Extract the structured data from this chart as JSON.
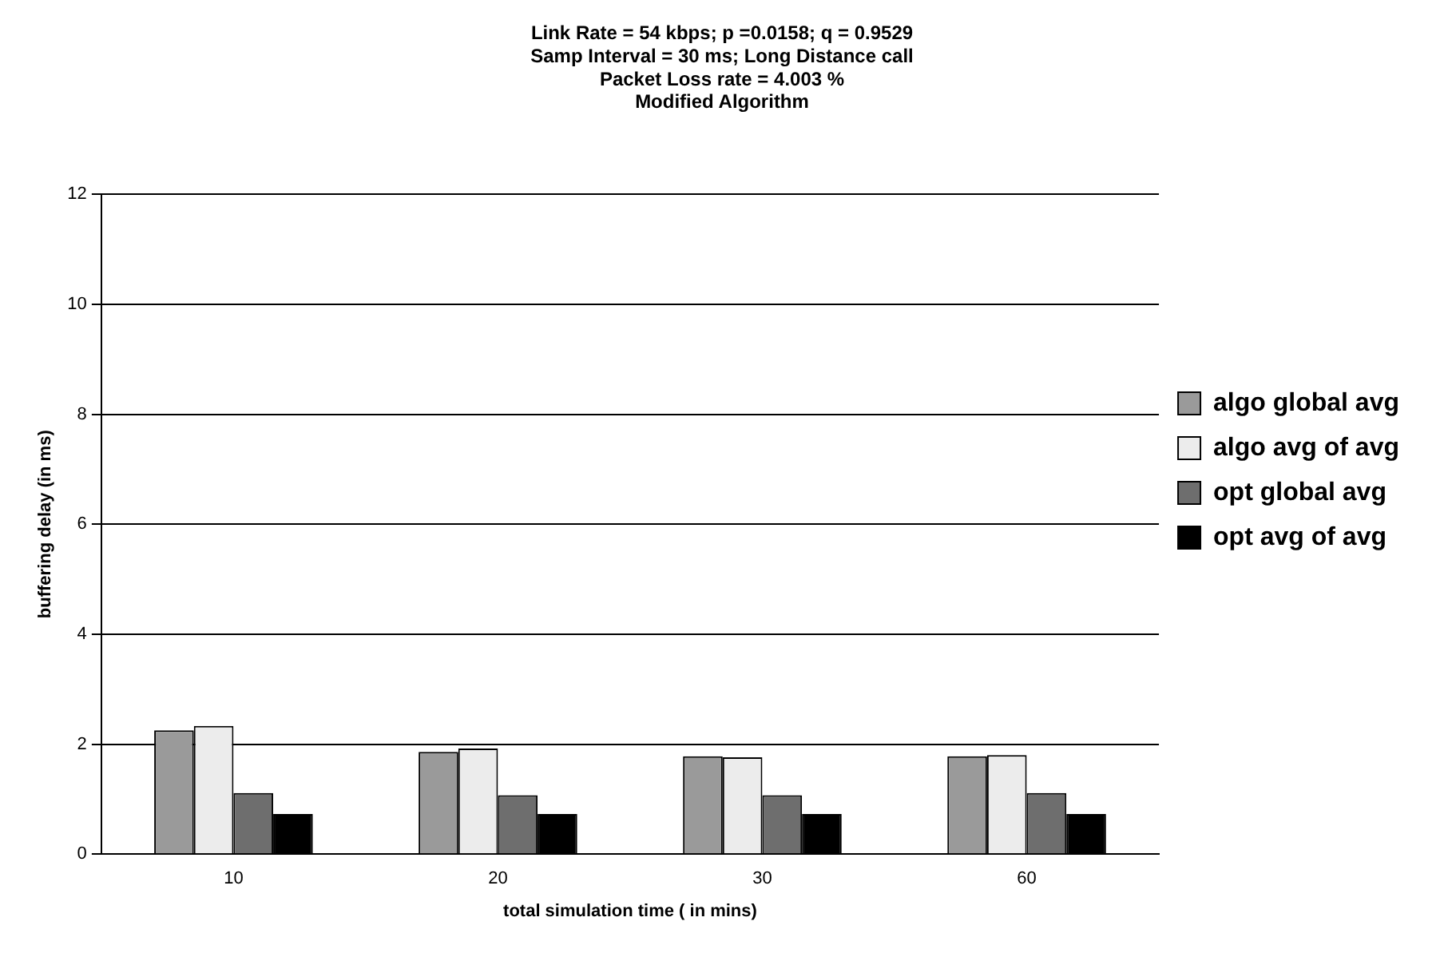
{
  "chart_data": {
    "type": "bar",
    "title": [
      "Link Rate = 54 kbps; p =0.0158; q = 0.9529",
      "Samp Interval = 30 ms; Long Distance call",
      "Packet Loss rate = 4.003 %",
      "Modified Algorithm"
    ],
    "xlabel": "total simulation time ( in mins)",
    "ylabel": "buffering delay (in ms)",
    "categories": [
      "10",
      "20",
      "30",
      "60"
    ],
    "series": [
      {
        "name": "algo global avg",
        "color": "#9a9a9a",
        "values": [
          2.25,
          1.86,
          1.78,
          1.78
        ]
      },
      {
        "name": "algo avg of avg",
        "color": "#ececec",
        "values": [
          2.33,
          1.92,
          1.76,
          1.8
        ]
      },
      {
        "name": "opt global avg",
        "color": "#6e6e6e",
        "values": [
          1.11,
          1.07,
          1.07,
          1.11
        ]
      },
      {
        "name": "opt avg of avg",
        "color": "#000000",
        "values": [
          0.73,
          0.73,
          0.73,
          0.73
        ]
      }
    ],
    "ylim": [
      0,
      12
    ],
    "yticks": [
      0,
      2,
      4,
      6,
      8,
      10,
      12
    ],
    "grid": "y",
    "legend": "right"
  }
}
